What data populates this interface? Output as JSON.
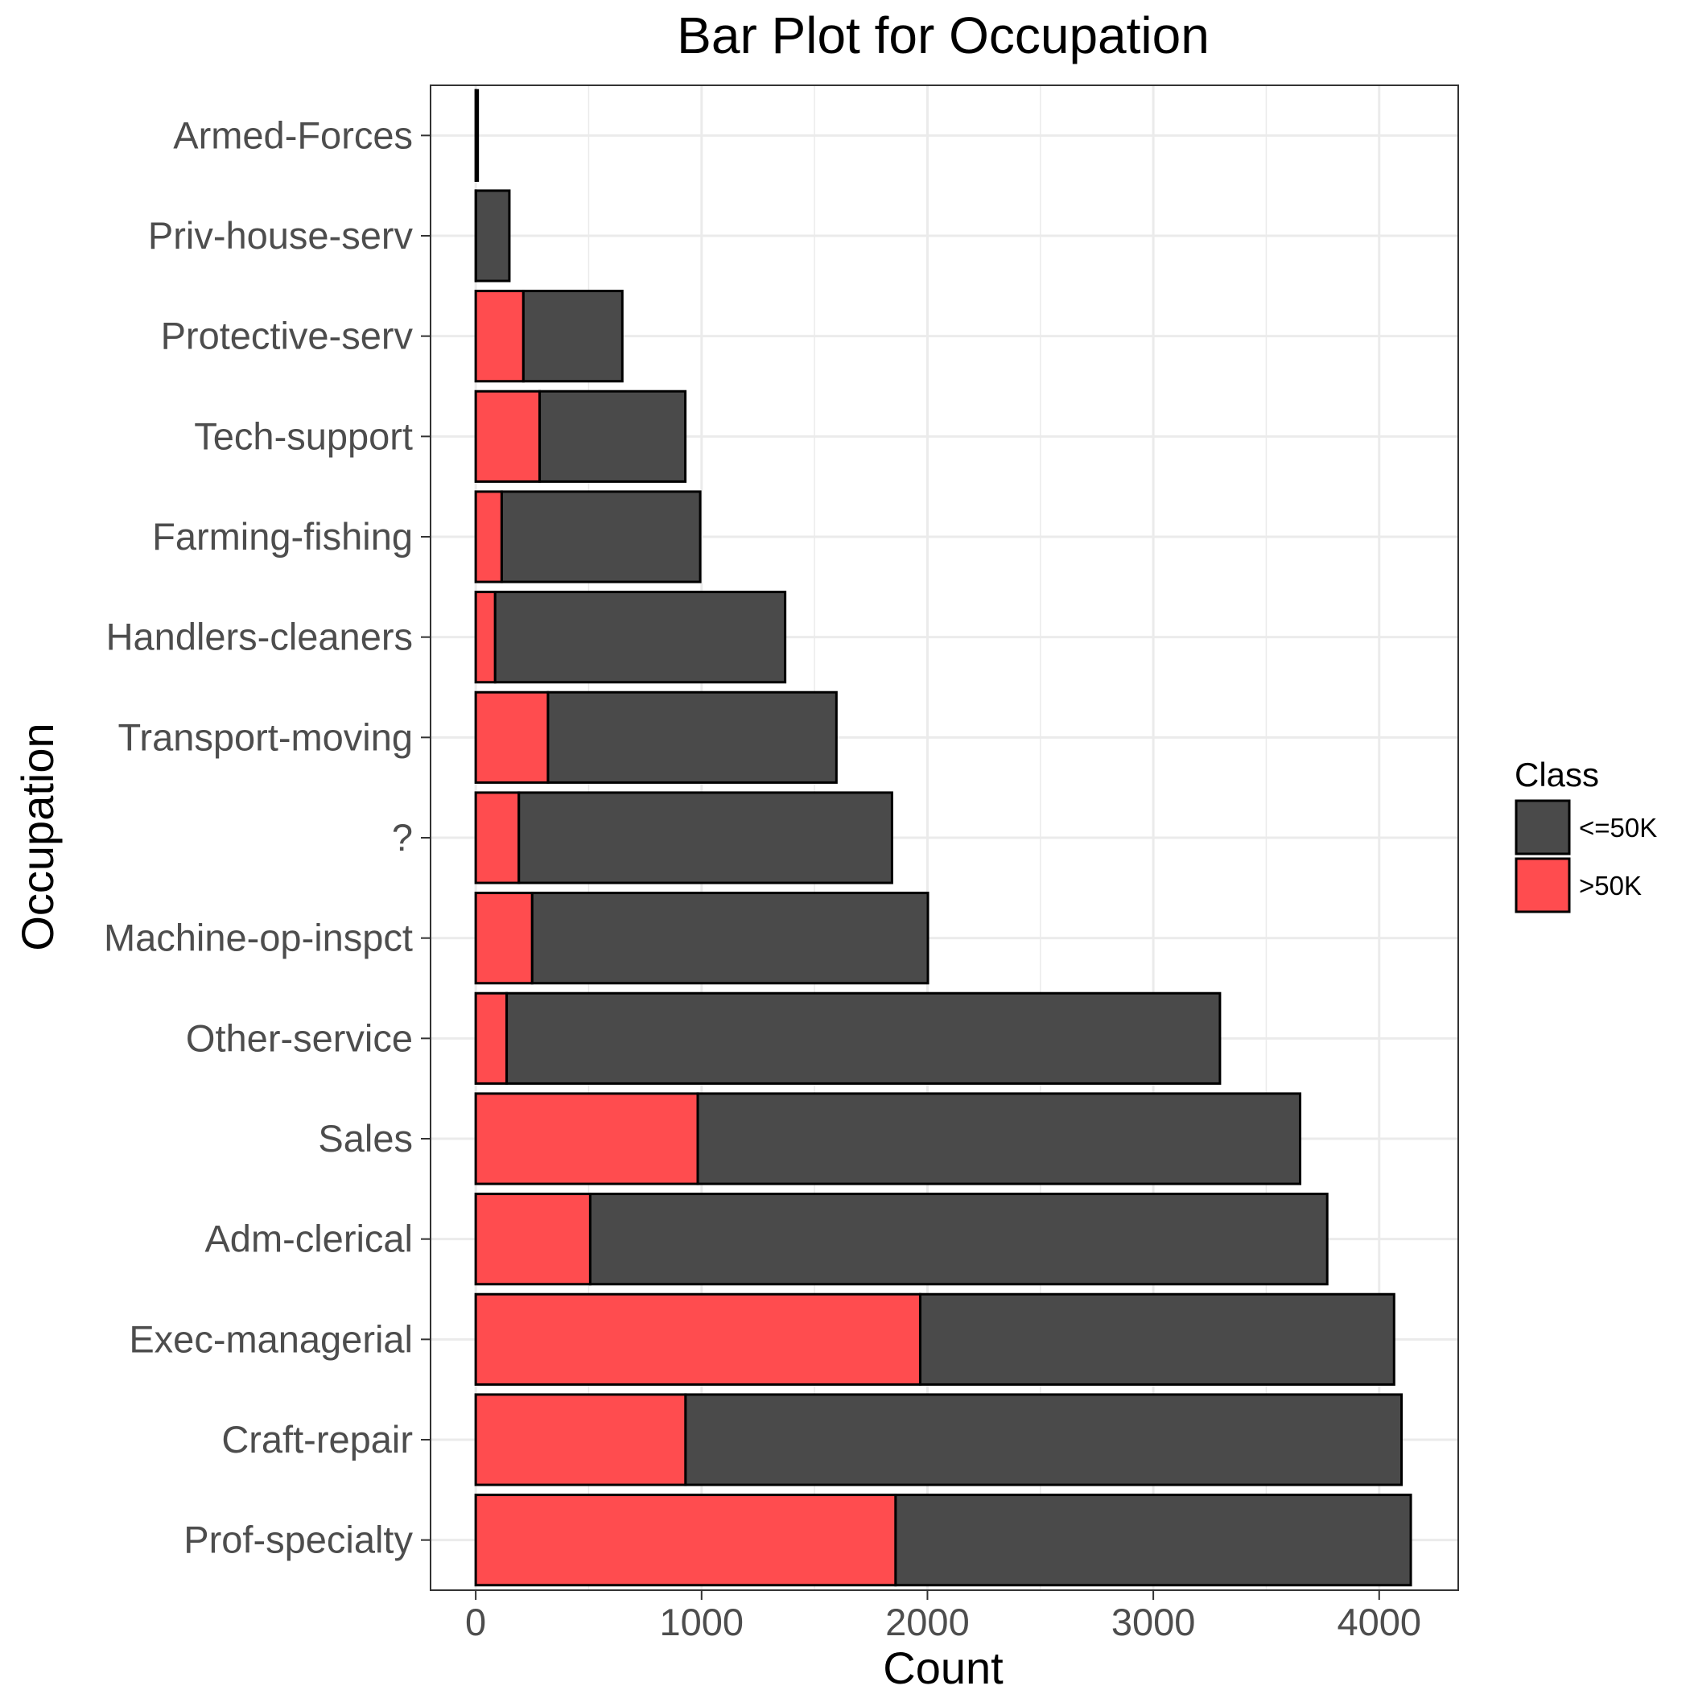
{
  "chart_data": {
    "type": "bar",
    "orientation": "horizontal",
    "stacked": true,
    "title": "Bar Plot for Occupation",
    "xlabel": "Count",
    "ylabel": "Occupation",
    "xlim": [
      -200,
      4350
    ],
    "x_ticks": [
      0,
      1000,
      2000,
      3000,
      4000
    ],
    "x_tick_labels": [
      "0",
      "1000",
      "2000",
      "3000",
      "4000"
    ],
    "grid": true,
    "legend_position": "right",
    "legend_title": "Class",
    "categories": [
      "Prof-specialty",
      "Craft-repair",
      "Exec-managerial",
      "Adm-clerical",
      "Sales",
      "Other-service",
      "Machine-op-inspct",
      "?",
      "Transport-moving",
      "Handlers-cleaners",
      "Farming-fishing",
      "Tech-support",
      "Protective-serv",
      "Priv-house-serv",
      "Armed-Forces"
    ],
    "series": [
      {
        "name": ">50K",
        "color": "#ff4c4f",
        "values": [
          1859,
          929,
          1968,
          507,
          983,
          137,
          250,
          191,
          320,
          86,
          115,
          283,
          211,
          1,
          1
        ]
      },
      {
        "name": "<=50K",
        "color": "#4a4a4a",
        "values": [
          2281,
          3170,
          2098,
          3263,
          2667,
          3158,
          1752,
          1652,
          1277,
          1284,
          879,
          645,
          438,
          148,
          8
        ]
      }
    ]
  }
}
